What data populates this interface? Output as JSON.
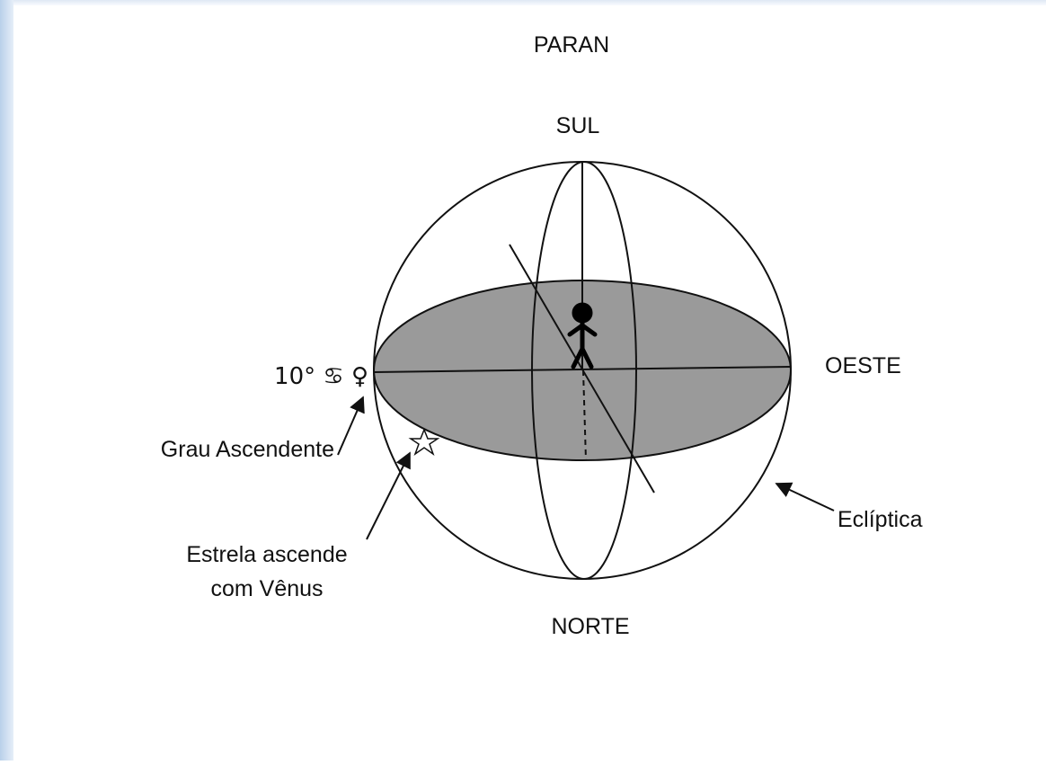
{
  "title": "PARAN",
  "labels": {
    "top": "SUL",
    "bottom": "NORTE",
    "right": "OESTE",
    "left_degree": "10° ♋ ♀"
  },
  "annotations": {
    "ascendant": "Grau Ascendente",
    "star": [
      "Estrela ascende",
      "com Vênus"
    ],
    "ecliptic": "Eclíptica"
  }
}
